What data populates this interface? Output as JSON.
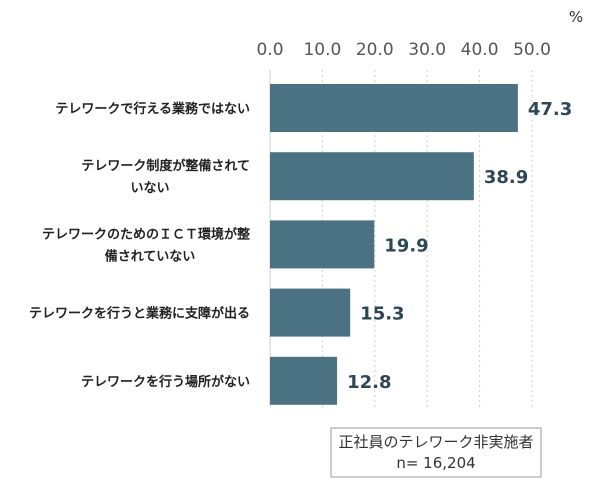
{
  "chart_data": {
    "type": "bar",
    "orientation": "horizontal",
    "unit": "%",
    "categories": [
      [
        "テレワークで行える業務ではない"
      ],
      [
        "テレワーク制度が整備されて",
        "いない"
      ],
      [
        "テレワークのためのＩＣＴ環境が整",
        "備されていない"
      ],
      [
        "テレワークを行うと業務に支障が出る"
      ],
      [
        "テレワークを行う場所がない"
      ]
    ],
    "values": [
      47.3,
      38.9,
      19.9,
      15.3,
      12.8
    ],
    "value_labels": [
      "47.3",
      "38.9",
      "19.9",
      "15.3",
      "12.8"
    ],
    "xlim": [
      0,
      50
    ],
    "xticks": [
      "0.0",
      "10.0",
      "20.0",
      "30.0",
      "40.0",
      "50.0"
    ],
    "grid": true,
    "bar_color": "#4a7282",
    "annotation": [
      "正社員のテレワーク非実施者",
      "n= 16,204"
    ]
  }
}
